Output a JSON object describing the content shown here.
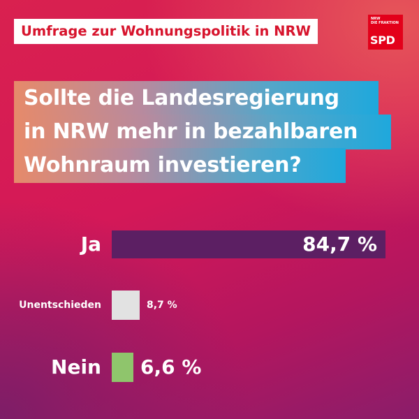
{
  "header": {
    "survey_label": "Umfrage zur Wohnungspolitik in NRW"
  },
  "logo": {
    "small_text": "NRW\nDIE FRAKTION",
    "wordmark": "SPD",
    "color": "#e3001a"
  },
  "question": {
    "lines": [
      "Sollte die Landesregierung",
      "in NRW mehr in bezahlbaren",
      "Wohnraum investieren?"
    ]
  },
  "chart_data": {
    "type": "bar",
    "orientation": "horizontal",
    "categories": [
      "Ja",
      "Unentschieden",
      "Nein"
    ],
    "values": [
      84.7,
      8.7,
      6.6
    ],
    "value_labels": [
      "84,7 %",
      "8,7 %",
      "6,6 %"
    ],
    "unit": "%",
    "colors": [
      "#5c1f63",
      "#e2e2e2",
      "#8fc56c"
    ],
    "title": "",
    "xlabel": "",
    "ylabel": ""
  }
}
